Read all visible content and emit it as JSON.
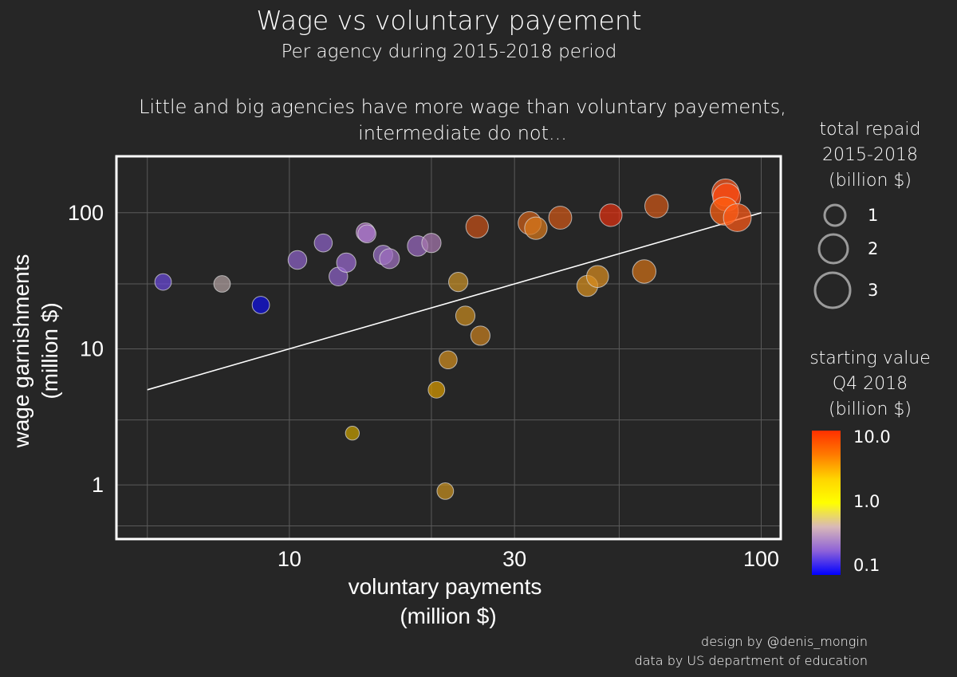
{
  "header": {
    "title": "Wage vs voluntary payement",
    "subtitle": "Per agency during 2015-2018 period",
    "annotation_line1": "Little and big agencies have more wage than voluntary payements,",
    "annotation_line2": "intermediate do not..."
  },
  "legends": {
    "size": {
      "title_line1": "total repaid",
      "title_line2": "2015-2018",
      "title_line3": "(billion $)",
      "entries": [
        "1",
        "2",
        "3"
      ]
    },
    "color": {
      "title_line1": "starting value",
      "title_line2": "Q4 2018",
      "title_line3": "(billion $)",
      "ticks": [
        "10.0",
        "1.0",
        "0.1"
      ],
      "colors": [
        "#ff3000",
        "#ff7a00",
        "#ffd400",
        "#ffff00",
        "#d8b8b8",
        "#8e62d8",
        "#0000ff"
      ]
    }
  },
  "credits": {
    "line1": "design by @denis_mongin",
    "line2": "data by US department of education"
  },
  "chart_data": {
    "type": "scatter",
    "title": "",
    "xlabel_line1": "voluntary payments",
    "xlabel_line2": "(million $)",
    "ylabel_line1": "wage garnishments",
    "ylabel_line2": "(million $)",
    "x_scale": "log",
    "y_scale": "log",
    "xlim": [
      4.3,
      110
    ],
    "ylim": [
      0.4,
      260
    ],
    "x_ticks": [
      10,
      30,
      100
    ],
    "x_tick_labels": [
      "10",
      "30",
      "100"
    ],
    "y_ticks": [
      1,
      10,
      100
    ],
    "y_tick_labels": [
      "1",
      "10",
      "100"
    ],
    "grid": true,
    "reference_line": [
      [
        5,
        5
      ],
      [
        100,
        100
      ]
    ],
    "points": [
      {
        "x": 5.4,
        "y": 31,
        "size": 0.6,
        "color": "#6a4ad8"
      },
      {
        "x": 7.2,
        "y": 30,
        "size": 0.6,
        "color": "#b0a0a0"
      },
      {
        "x": 8.7,
        "y": 21,
        "size": 0.7,
        "color": "#1010e0"
      },
      {
        "x": 10.4,
        "y": 45,
        "size": 0.9,
        "color": "#8e62c8"
      },
      {
        "x": 11.8,
        "y": 60,
        "size": 0.8,
        "color": "#8e62c8"
      },
      {
        "x": 12.7,
        "y": 34,
        "size": 0.9,
        "color": "#8e62c8"
      },
      {
        "x": 13.2,
        "y": 43,
        "size": 1.0,
        "color": "#9a6ad0"
      },
      {
        "x": 14.5,
        "y": 72,
        "size": 0.9,
        "color": "#b070c8"
      },
      {
        "x": 14.6,
        "y": 70,
        "size": 0.8,
        "color": "#a878c8"
      },
      {
        "x": 15.8,
        "y": 49,
        "size": 1.0,
        "color": "#9a70c8"
      },
      {
        "x": 16.3,
        "y": 46,
        "size": 1.1,
        "color": "#a070c0"
      },
      {
        "x": 18.7,
        "y": 57,
        "size": 1.2,
        "color": "#9a6ac0"
      },
      {
        "x": 20.0,
        "y": 60,
        "size": 1.0,
        "color": "#a878b0"
      },
      {
        "x": 13.6,
        "y": 2.4,
        "size": 0.3,
        "color": "#c8a000"
      },
      {
        "x": 20.5,
        "y": 5.0,
        "size": 0.6,
        "color": "#d89a00"
      },
      {
        "x": 21.4,
        "y": 0.9,
        "size": 0.6,
        "color": "#c89020"
      },
      {
        "x": 21.7,
        "y": 8.3,
        "size": 0.8,
        "color": "#d08e20"
      },
      {
        "x": 22.8,
        "y": 31,
        "size": 1.0,
        "color": "#c89028"
      },
      {
        "x": 23.6,
        "y": 17.5,
        "size": 1.0,
        "color": "#c88a20"
      },
      {
        "x": 25.4,
        "y": 12.5,
        "size": 1.0,
        "color": "#c88020"
      },
      {
        "x": 25.0,
        "y": 79,
        "size": 1.6,
        "color": "#c85018"
      },
      {
        "x": 32.3,
        "y": 84,
        "size": 1.7,
        "color": "#d06018"
      },
      {
        "x": 33.3,
        "y": 77,
        "size": 1.6,
        "color": "#d8781c"
      },
      {
        "x": 37.5,
        "y": 92,
        "size": 1.7,
        "color": "#d05818"
      },
      {
        "x": 42.8,
        "y": 29,
        "size": 1.3,
        "color": "#d89020"
      },
      {
        "x": 45.0,
        "y": 34,
        "size": 1.5,
        "color": "#d88c20"
      },
      {
        "x": 48.0,
        "y": 96,
        "size": 1.6,
        "color": "#e03010"
      },
      {
        "x": 56.5,
        "y": 37,
        "size": 1.8,
        "color": "#d07018"
      },
      {
        "x": 60.0,
        "y": 112,
        "size": 1.8,
        "color": "#d05818"
      },
      {
        "x": 84.0,
        "y": 141,
        "size": 2.7,
        "color": "#ff5a20"
      },
      {
        "x": 84.5,
        "y": 130,
        "size": 2.9,
        "color": "#ff4a10"
      },
      {
        "x": 83.5,
        "y": 103,
        "size": 3.0,
        "color": "#ff6010"
      },
      {
        "x": 89.0,
        "y": 92,
        "size": 2.9,
        "color": "#ff5a18"
      }
    ]
  }
}
